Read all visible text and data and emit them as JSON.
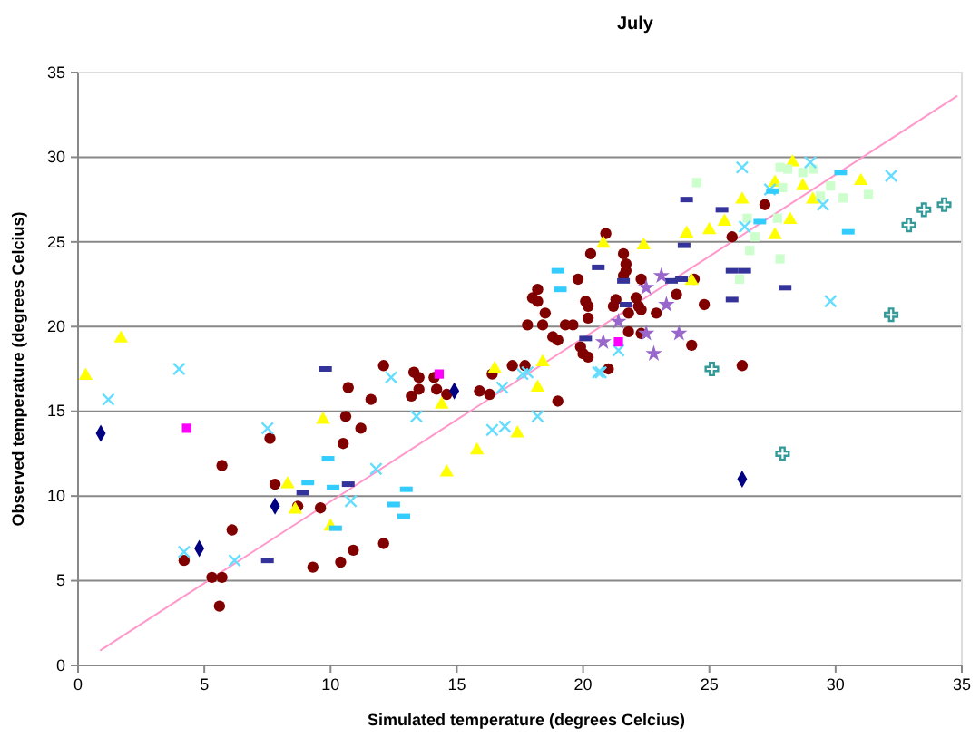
{
  "chart_data": {
    "type": "scatter",
    "title": "July",
    "xlabel": "Simulated temperature (degrees Celcius)",
    "ylabel": "Observed temperature (degrees Celcius)",
    "xlim": [
      0,
      35
    ],
    "ylim": [
      0,
      35
    ],
    "xticks": [
      0,
      5,
      10,
      15,
      20,
      25,
      30,
      35
    ],
    "yticks": [
      0,
      5,
      10,
      15,
      20,
      25,
      30,
      35
    ],
    "grid": "y",
    "series": [
      {
        "type": "line",
        "color": "#ff99cc",
        "marker": "none",
        "line_style": "solid",
        "x": [
          0.9,
          34.8
        ],
        "values": [
          0.9,
          33.6
        ]
      },
      {
        "color": "#800000",
        "marker": "circle",
        "x": [
          4.2,
          5.3,
          5.7,
          5.6,
          6.1,
          5.7,
          7.6,
          7.8,
          8.7,
          9.6,
          9.3,
          10.4,
          10.9,
          12.1,
          10.5,
          10.6,
          11.2,
          11.6,
          10.7,
          12.1,
          13.3,
          13.5,
          13.2,
          13.5,
          14.1,
          14.2,
          14.6,
          15.9,
          16.3,
          16.4,
          17.2,
          17.7,
          19.0,
          20.9,
          20.3,
          21.6,
          21.7,
          21.7,
          21.6,
          22.3,
          19.8,
          18.2,
          18.0,
          18.2,
          17.8,
          18.5,
          18.4,
          18.8,
          19.0,
          19.3,
          19.6,
          20.1,
          20.2,
          20.2,
          19.9,
          20.0,
          20.2,
          21.0,
          21.2,
          21.3,
          21.8,
          22.1,
          22.2,
          22.3,
          21.8,
          22.3,
          22.9,
          23.7,
          24.4,
          24.8,
          24.3,
          25.9,
          27.2,
          26.3
        ],
        "values": [
          6.2,
          5.2,
          5.2,
          3.5,
          8.0,
          11.8,
          13.4,
          10.7,
          9.4,
          9.3,
          5.8,
          6.1,
          6.8,
          7.2,
          13.1,
          14.7,
          14.0,
          15.7,
          16.4,
          17.7,
          17.3,
          17.0,
          15.9,
          16.3,
          17.0,
          16.3,
          16.0,
          16.2,
          16.0,
          17.2,
          17.7,
          17.7,
          15.6,
          25.5,
          24.3,
          24.3,
          23.7,
          23.3,
          23.0,
          22.8,
          22.8,
          22.2,
          21.7,
          21.5,
          20.1,
          20.8,
          20.1,
          19.4,
          19.2,
          20.1,
          20.1,
          21.5,
          21.2,
          20.5,
          18.8,
          18.4,
          18.2,
          17.5,
          21.2,
          21.6,
          20.8,
          21.7,
          21.2,
          21.0,
          19.7,
          19.6,
          20.8,
          21.9,
          22.8,
          21.3,
          18.9,
          25.3,
          27.2,
          17.7
        ]
      },
      {
        "color": "#ffff00",
        "marker": "triangle",
        "x": [
          0.3,
          1.7,
          9.7,
          8.3,
          8.6,
          10.0,
          14.4,
          14.6,
          15.8,
          16.5,
          17.4,
          18.2,
          24.3,
          24.1,
          25.0,
          25.6,
          26.3,
          22.4,
          20.8,
          27.6,
          28.2,
          27.6,
          28.3,
          28.7,
          29.1,
          31.0,
          18.4
        ],
        "values": [
          17.1,
          19.3,
          14.5,
          10.7,
          9.2,
          8.2,
          15.4,
          11.4,
          12.7,
          17.5,
          13.7,
          16.4,
          22.7,
          25.5,
          25.7,
          26.2,
          27.5,
          24.8,
          24.9,
          25.4,
          26.3,
          28.5,
          29.7,
          28.3,
          27.5,
          28.6,
          17.9
        ]
      },
      {
        "color": "#ccffcc",
        "marker": "square",
        "x": [
          24.5,
          26.5,
          26.8,
          26.6,
          26.2,
          27.8,
          27.7,
          27.9,
          28.1,
          28.7,
          29.4,
          29.8,
          30.3,
          31.3,
          29.1,
          27.8
        ],
        "values": [
          28.5,
          26.4,
          25.3,
          24.5,
          22.8,
          24.0,
          26.4,
          28.2,
          29.3,
          29.1,
          27.7,
          28.3,
          27.6,
          27.8,
          29.3,
          29.4
        ]
      },
      {
        "color": "#66ddff",
        "marker": "cross",
        "x": [
          4.0,
          1.2,
          7.5,
          4.2,
          6.2,
          12.4,
          13.4,
          11.8,
          10.8,
          16.4,
          16.8,
          17.6,
          16.9,
          18.2,
          17.8,
          20.6,
          26.3,
          27.4,
          29.0,
          29.5,
          32.2,
          29.8,
          26.4,
          21.4,
          20.7
        ],
        "values": [
          17.5,
          15.7,
          14.0,
          6.7,
          6.2,
          17.0,
          14.7,
          11.6,
          9.7,
          13.9,
          16.4,
          17.2,
          14.1,
          14.7,
          17.3,
          17.3,
          29.4,
          28.1,
          29.7,
          27.2,
          28.9,
          21.5,
          25.9,
          18.6,
          17.3
        ]
      },
      {
        "color": "#000080",
        "marker": "diamond",
        "x": [
          0.9,
          4.8,
          7.8,
          14.9,
          26.3
        ],
        "values": [
          13.7,
          6.9,
          9.4,
          16.2,
          11.0
        ]
      },
      {
        "color": "#ff00ff",
        "marker": "square",
        "x": [
          4.3,
          14.3,
          21.4
        ],
        "values": [
          14.0,
          17.2,
          19.1
        ]
      },
      {
        "color": "#339999",
        "marker": "plus",
        "x": [
          34.3,
          33.5,
          32.9,
          32.2,
          25.1,
          27.9
        ],
        "values": [
          27.2,
          26.9,
          26.0,
          20.7,
          17.5,
          12.5
        ]
      },
      {
        "color": "#333399",
        "x": [
          9.8,
          8.9,
          10.7,
          7.5,
          24.1,
          25.5,
          20.6,
          24.0,
          25.9,
          26.4,
          25.9,
          28.0,
          21.6,
          23.5,
          23.9,
          20.1,
          21.7
        ],
        "values": [
          17.5,
          10.2,
          10.7,
          6.2,
          27.5,
          26.9,
          23.5,
          24.8,
          23.3,
          23.3,
          21.6,
          22.3,
          22.7,
          22.7,
          22.8,
          19.3,
          21.3
        ]
      },
      {
        "color": "#33ccff",
        "x": [
          9.9,
          9.1,
          10.1,
          10.2,
          13.0,
          12.5,
          12.9,
          19.0,
          19.1,
          27.0,
          30.5,
          30.2,
          27.5
        ],
        "values": [
          12.2,
          10.8,
          10.5,
          8.1,
          10.4,
          9.5,
          8.8,
          23.3,
          22.2,
          26.2,
          25.6,
          29.1,
          28.0
        ]
      },
      {
        "color": "#9966cc",
        "marker": "star",
        "x": [
          23.1,
          22.5,
          23.3,
          21.4,
          23.8,
          22.8,
          20.8,
          22.5
        ],
        "values": [
          23.0,
          22.3,
          21.3,
          20.3,
          19.6,
          18.4,
          19.1,
          19.6
        ]
      }
    ]
  }
}
